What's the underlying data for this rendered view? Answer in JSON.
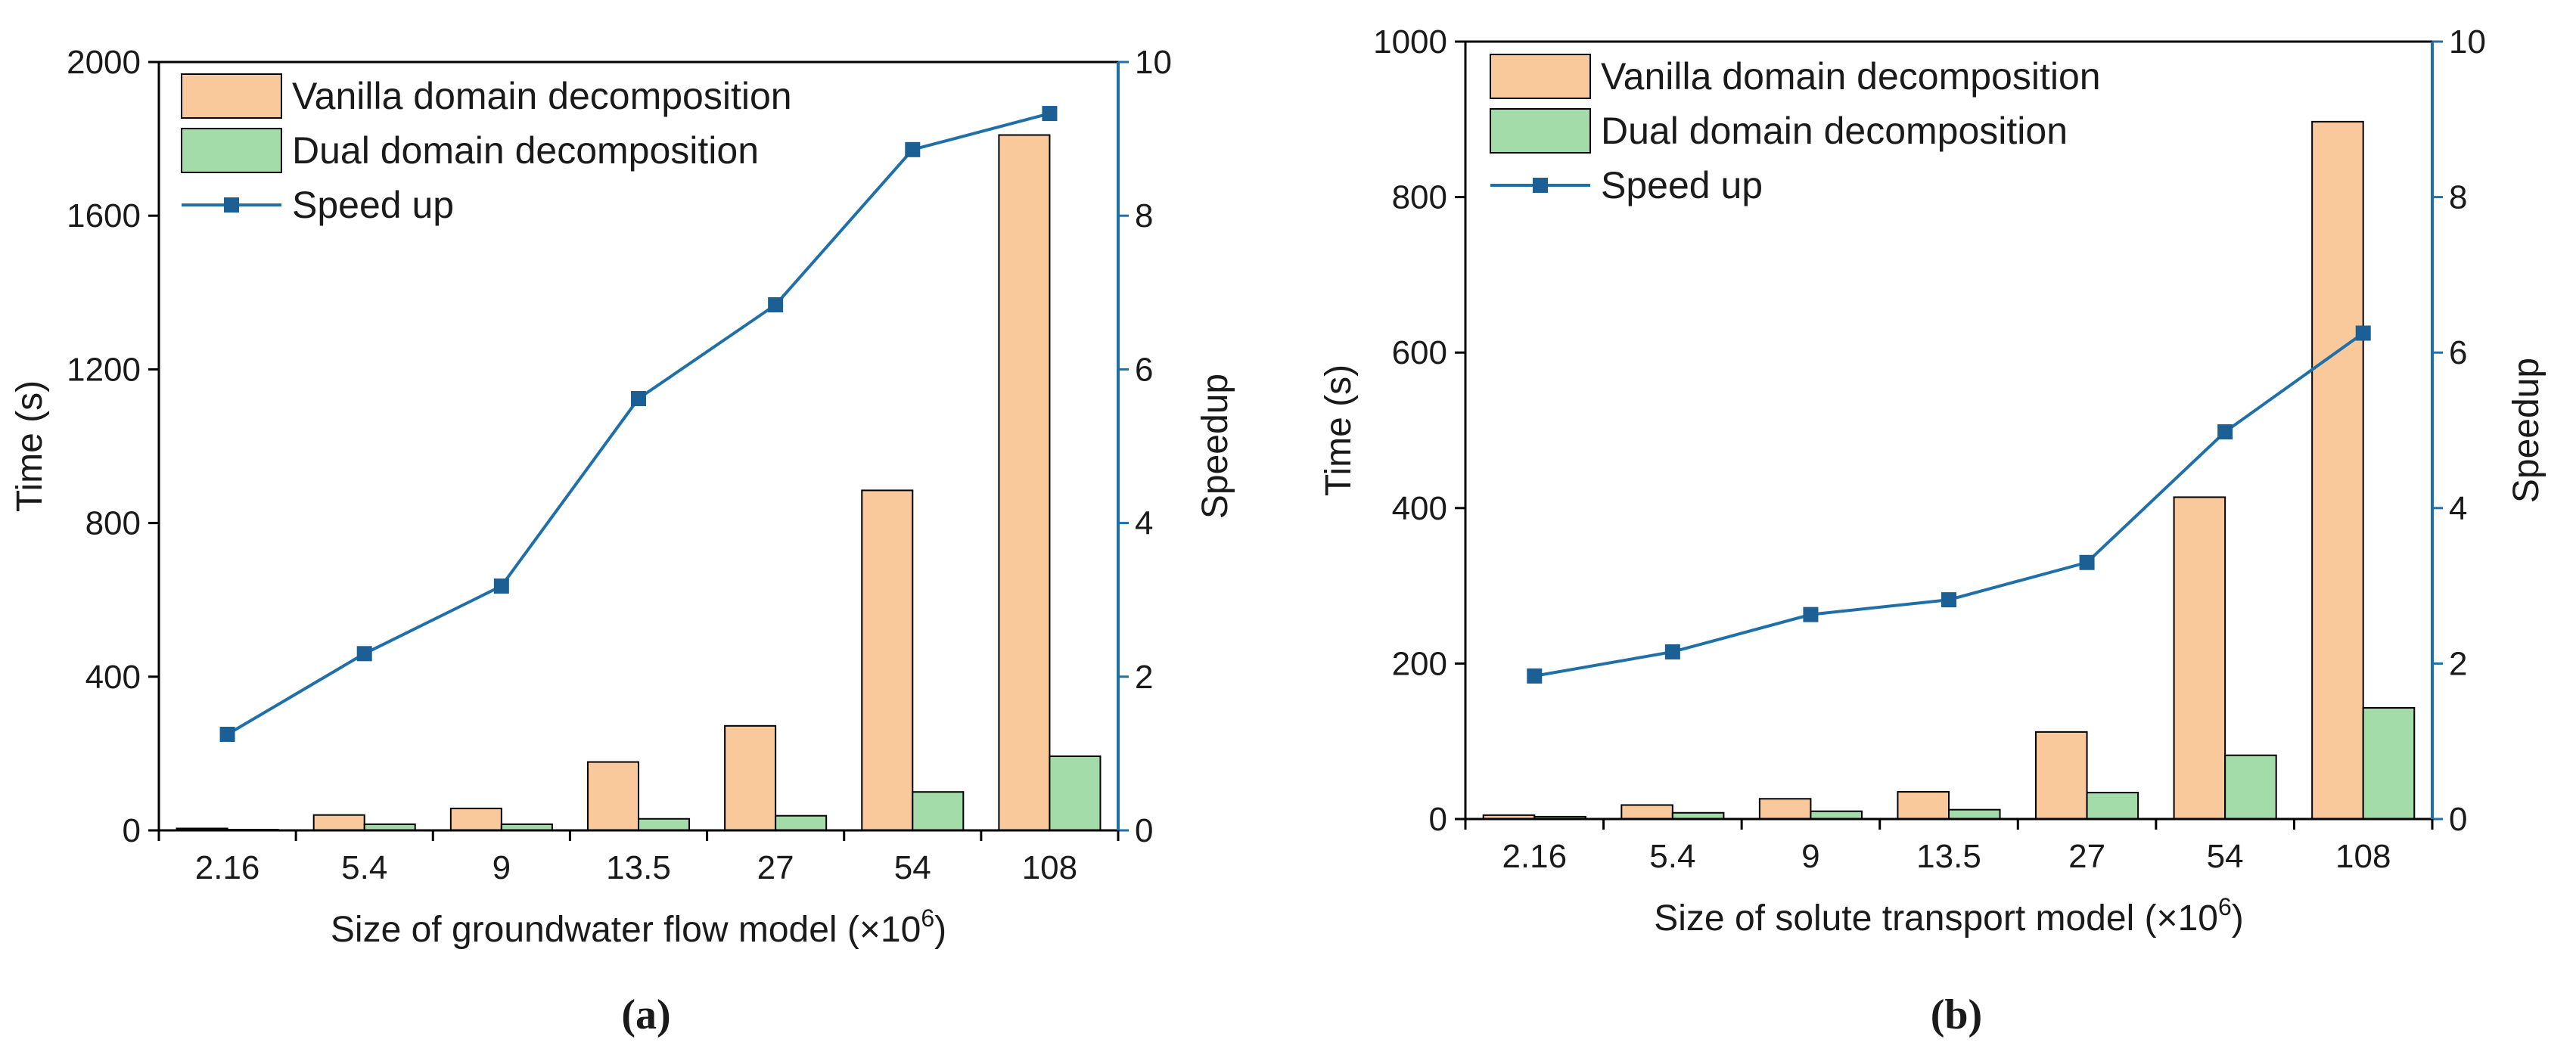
{
  "colors": {
    "vanilla_bar": "#F9C89B",
    "dual_bar": "#A3DBA9",
    "speedup_line": "#1F6FA8",
    "speedup_marker": "#1B5F95",
    "axis": "#000000",
    "right_axis": "#1F6FA8"
  },
  "chart_data": [
    {
      "type": "bar",
      "panel_label": "(a)",
      "title": "",
      "categories": [
        "2.16",
        "5.4",
        "9",
        "13.5",
        "27",
        "54",
        "108"
      ],
      "series": [
        {
          "name": "Vanilla domain decomposition",
          "kind": "bar",
          "axis": "left",
          "values": [
            5,
            40,
            57,
            178,
            272,
            885,
            1810
          ]
        },
        {
          "name": "Dual domain decomposition",
          "kind": "bar",
          "axis": "left",
          "values": [
            2,
            16,
            16,
            30,
            38,
            100,
            193
          ]
        },
        {
          "name": "Speed up",
          "kind": "line",
          "axis": "right",
          "values": [
            1.25,
            2.3,
            3.18,
            5.62,
            6.84,
            8.86,
            9.33
          ]
        }
      ],
      "xlabel": "Size of groundwater flow model (×10",
      "xlabel_sup": "6",
      "xlabel_tail": ")",
      "ylabel": "Time (s)",
      "ylabel_right": "Speedup",
      "ylim": [
        0,
        2000
      ],
      "yticks": [
        "0",
        "400",
        "800",
        "1200",
        "1600",
        "2000"
      ],
      "ylim_right": [
        0,
        10
      ],
      "yticks_right": [
        "0",
        "2",
        "4",
        "6",
        "8",
        "10"
      ],
      "legend": [
        "Vanilla domain decomposition",
        "Dual domain decomposition",
        "Speed up"
      ],
      "legend_position": "top-left",
      "grid": false
    },
    {
      "type": "bar",
      "panel_label": "(b)",
      "title": "",
      "categories": [
        "2.16",
        "5.4",
        "9",
        "13.5",
        "27",
        "54",
        "108"
      ],
      "series": [
        {
          "name": "Vanilla domain decomposition",
          "kind": "bar",
          "axis": "left",
          "values": [
            5,
            18,
            26,
            35,
            112,
            414,
            897
          ]
        },
        {
          "name": "Dual domain decomposition",
          "kind": "bar",
          "axis": "left",
          "values": [
            3,
            8,
            10,
            12,
            34,
            82,
            143
          ]
        },
        {
          "name": "Speed up",
          "kind": "line",
          "axis": "right",
          "values": [
            1.84,
            2.15,
            2.63,
            2.82,
            3.3,
            4.98,
            6.25
          ]
        }
      ],
      "xlabel": "Size of solute transport model (×10",
      "xlabel_sup": "6",
      "xlabel_tail": ")",
      "ylabel": "Time (s)",
      "ylabel_right": "Speedup",
      "ylim": [
        0,
        1000
      ],
      "yticks": [
        "0",
        "200",
        "400",
        "600",
        "800",
        "1000"
      ],
      "ylim_right": [
        0,
        10
      ],
      "yticks_right": [
        "0",
        "2",
        "4",
        "6",
        "8",
        "10"
      ],
      "legend": [
        "Vanilla domain decomposition",
        "Dual domain decomposition",
        "Speed up"
      ],
      "legend_position": "top-left",
      "grid": false
    }
  ]
}
